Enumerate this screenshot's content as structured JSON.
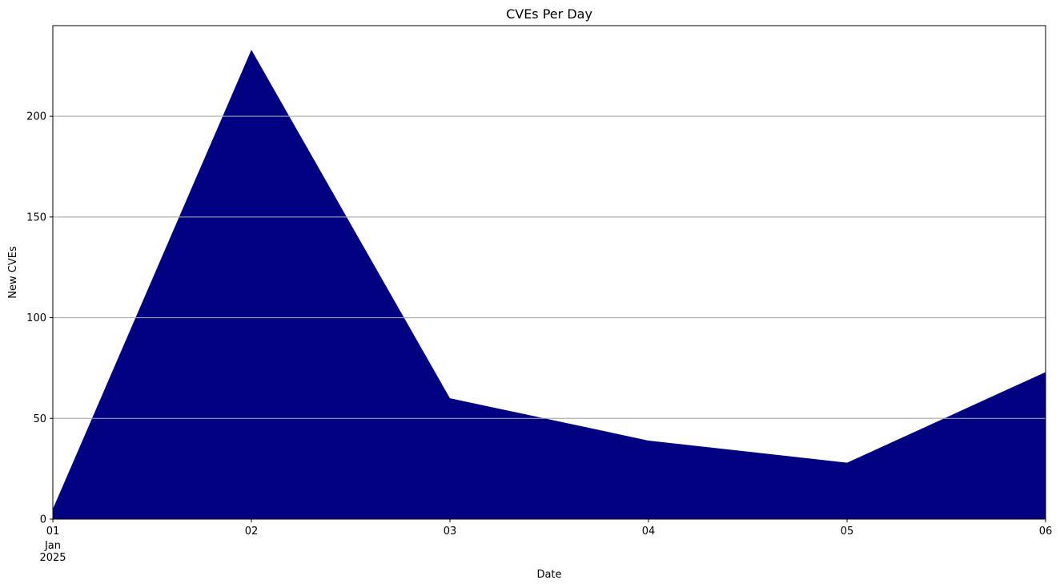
{
  "chart_data": {
    "type": "area",
    "title": "CVEs Per Day",
    "xlabel": "Date",
    "ylabel": "New CVEs",
    "x": [
      "2025-01-01",
      "2025-01-02",
      "2025-01-03",
      "2025-01-04",
      "2025-01-05",
      "2025-01-06"
    ],
    "x_tick_labels": [
      "01",
      "02",
      "03",
      "04",
      "05",
      "06"
    ],
    "x_tick_sublabels": [
      "Jan",
      "2025"
    ],
    "values": [
      5,
      233,
      60,
      39,
      28,
      73
    ],
    "y_ticks": [
      0,
      50,
      100,
      150,
      200
    ],
    "ylim": [
      0,
      245
    ],
    "grid": "y",
    "fill_color": "#000080",
    "grid_color": "#b0b0b0"
  }
}
